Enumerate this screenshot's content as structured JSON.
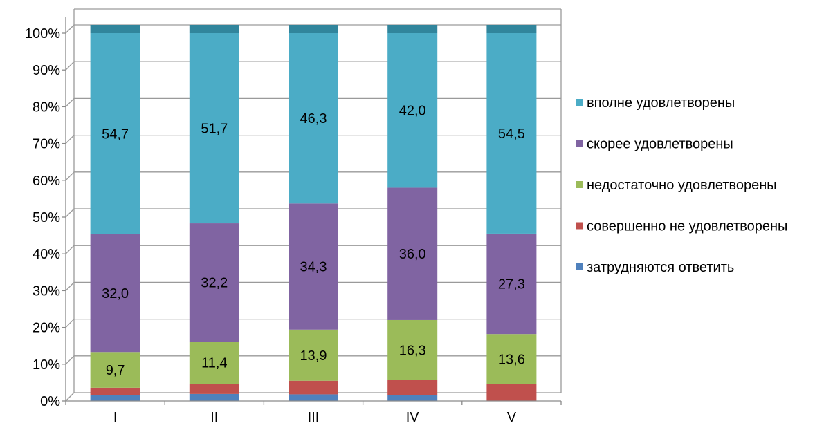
{
  "chart_data": {
    "type": "bar",
    "stacked": true,
    "categories": [
      "I",
      "II",
      "III",
      "IV",
      "V"
    ],
    "y_tick_labels": [
      "0%",
      "10%",
      "20%",
      "30%",
      "40%",
      "50%",
      "60%",
      "70%",
      "80%",
      "90%",
      "100%"
    ],
    "ylim": [
      0,
      100
    ],
    "grid": true,
    "legend_position": "right",
    "series": [
      {
        "name": "затрудняются ответить",
        "color": "#4F81BD",
        "values": [
          1.6,
          1.9,
          1.8,
          1.6,
          0.0
        ],
        "labels": [
          "",
          "",
          "",
          "",
          ""
        ]
      },
      {
        "name": "совершенно не удовлетворены",
        "color": "#C0504D",
        "values": [
          2.0,
          2.8,
          3.7,
          4.1,
          4.6
        ],
        "labels": [
          "",
          "",
          "",
          "",
          ""
        ]
      },
      {
        "name": "недостаточно удовлетворены",
        "color": "#9BBB59",
        "values": [
          9.7,
          11.4,
          13.9,
          16.3,
          13.6
        ],
        "labels": [
          "9,7",
          "11,4",
          "13,9",
          "16,3",
          "13,6"
        ]
      },
      {
        "name": "скорее удовлетворены",
        "color": "#8064A2",
        "values": [
          32.0,
          32.2,
          34.3,
          36.0,
          27.3
        ],
        "labels": [
          "32,0",
          "32,2",
          "34,3",
          "36,0",
          "27,3"
        ]
      },
      {
        "name": "вполне удовлетворены",
        "color": "#4BACC6",
        "values": [
          54.7,
          51.7,
          46.3,
          42.0,
          54.5
        ],
        "labels": [
          "54,7",
          "51,7",
          "46,3",
          "42,0",
          "54,5"
        ]
      }
    ],
    "legend_order": [
      "вполне удовлетворены",
      "скорее удовлетворены",
      "недостаточно удовлетворены",
      "совершенно не удовлетворены",
      "затрудняются ответить"
    ]
  }
}
